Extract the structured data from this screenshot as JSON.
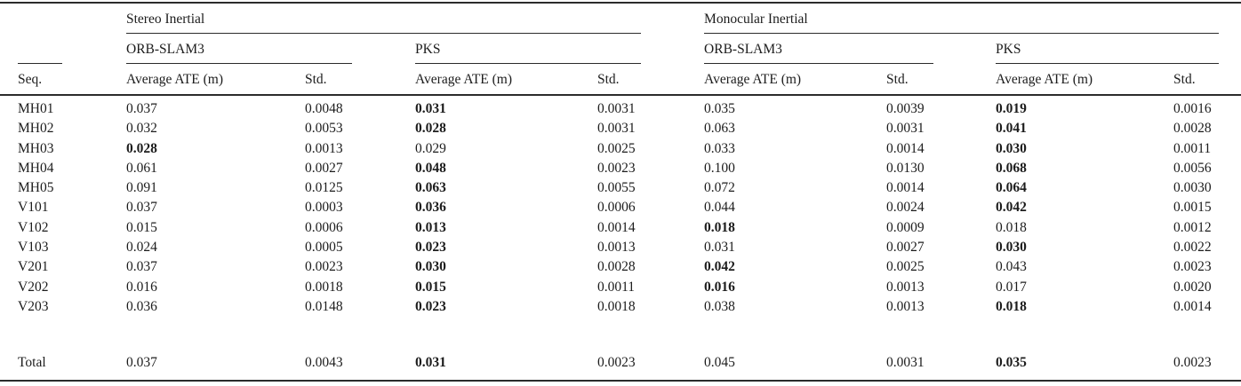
{
  "page": {
    "background": "#ffffff",
    "text_color": "#1c1c1c",
    "rule_color": "#2b2b2b"
  },
  "table": {
    "row_header": "Seq.",
    "groups": [
      {
        "label": "Stereo Inertial",
        "methods": [
          {
            "label": "ORB-SLAM3"
          },
          {
            "label": "PKS"
          }
        ]
      },
      {
        "label": "Monocular Inertial",
        "methods": [
          {
            "label": "ORB-SLAM3"
          },
          {
            "label": "PKS"
          }
        ]
      }
    ],
    "col_headers": {
      "avg": "Average ATE (m)",
      "std": "Std."
    },
    "rows": [
      {
        "seq": "MH01",
        "cells": [
          {
            "v": "0.037",
            "bold": false
          },
          {
            "v": "0.0048",
            "bold": false
          },
          {
            "v": "0.031",
            "bold": true
          },
          {
            "v": "0.0031",
            "bold": false
          },
          {
            "v": "0.035",
            "bold": false
          },
          {
            "v": "0.0039",
            "bold": false
          },
          {
            "v": "0.019",
            "bold": true
          },
          {
            "v": "0.0016",
            "bold": false
          }
        ]
      },
      {
        "seq": "MH02",
        "cells": [
          {
            "v": "0.032",
            "bold": false
          },
          {
            "v": "0.0053",
            "bold": false
          },
          {
            "v": "0.028",
            "bold": true
          },
          {
            "v": "0.0031",
            "bold": false
          },
          {
            "v": "0.063",
            "bold": false
          },
          {
            "v": "0.0031",
            "bold": false
          },
          {
            "v": "0.041",
            "bold": true
          },
          {
            "v": "0.0028",
            "bold": false
          }
        ]
      },
      {
        "seq": "MH03",
        "cells": [
          {
            "v": "0.028",
            "bold": true
          },
          {
            "v": "0.0013",
            "bold": false
          },
          {
            "v": "0.029",
            "bold": false
          },
          {
            "v": "0.0025",
            "bold": false
          },
          {
            "v": "0.033",
            "bold": false
          },
          {
            "v": "0.0014",
            "bold": false
          },
          {
            "v": "0.030",
            "bold": true
          },
          {
            "v": "0.0011",
            "bold": false
          }
        ]
      },
      {
        "seq": "MH04",
        "cells": [
          {
            "v": "0.061",
            "bold": false
          },
          {
            "v": "0.0027",
            "bold": false
          },
          {
            "v": "0.048",
            "bold": true
          },
          {
            "v": "0.0023",
            "bold": false
          },
          {
            "v": "0.100",
            "bold": false
          },
          {
            "v": "0.0130",
            "bold": false
          },
          {
            "v": "0.068",
            "bold": true
          },
          {
            "v": "0.0056",
            "bold": false
          }
        ]
      },
      {
        "seq": "MH05",
        "cells": [
          {
            "v": "0.091",
            "bold": false
          },
          {
            "v": "0.0125",
            "bold": false
          },
          {
            "v": "0.063",
            "bold": true
          },
          {
            "v": "0.0055",
            "bold": false
          },
          {
            "v": "0.072",
            "bold": false
          },
          {
            "v": "0.0014",
            "bold": false
          },
          {
            "v": "0.064",
            "bold": true
          },
          {
            "v": "0.0030",
            "bold": false
          }
        ]
      },
      {
        "seq": "V101",
        "cells": [
          {
            "v": "0.037",
            "bold": false
          },
          {
            "v": "0.0003",
            "bold": false
          },
          {
            "v": "0.036",
            "bold": true
          },
          {
            "v": "0.0006",
            "bold": false
          },
          {
            "v": "0.044",
            "bold": false
          },
          {
            "v": "0.0024",
            "bold": false
          },
          {
            "v": "0.042",
            "bold": true
          },
          {
            "v": "0.0015",
            "bold": false
          }
        ]
      },
      {
        "seq": "V102",
        "cells": [
          {
            "v": "0.015",
            "bold": false
          },
          {
            "v": "0.0006",
            "bold": false
          },
          {
            "v": "0.013",
            "bold": true
          },
          {
            "v": "0.0014",
            "bold": false
          },
          {
            "v": "0.018",
            "bold": true
          },
          {
            "v": "0.0009",
            "bold": false
          },
          {
            "v": "0.018",
            "bold": false
          },
          {
            "v": "0.0012",
            "bold": false
          }
        ]
      },
      {
        "seq": "V103",
        "cells": [
          {
            "v": "0.024",
            "bold": false
          },
          {
            "v": "0.0005",
            "bold": false
          },
          {
            "v": "0.023",
            "bold": true
          },
          {
            "v": "0.0013",
            "bold": false
          },
          {
            "v": "0.031",
            "bold": false
          },
          {
            "v": "0.0027",
            "bold": false
          },
          {
            "v": "0.030",
            "bold": true
          },
          {
            "v": "0.0022",
            "bold": false
          }
        ]
      },
      {
        "seq": "V201",
        "cells": [
          {
            "v": "0.037",
            "bold": false
          },
          {
            "v": "0.0023",
            "bold": false
          },
          {
            "v": "0.030",
            "bold": true
          },
          {
            "v": "0.0028",
            "bold": false
          },
          {
            "v": "0.042",
            "bold": true
          },
          {
            "v": "0.0025",
            "bold": false
          },
          {
            "v": "0.043",
            "bold": false
          },
          {
            "v": "0.0023",
            "bold": false
          }
        ]
      },
      {
        "seq": "V202",
        "cells": [
          {
            "v": "0.016",
            "bold": false
          },
          {
            "v": "0.0018",
            "bold": false
          },
          {
            "v": "0.015",
            "bold": true
          },
          {
            "v": "0.0011",
            "bold": false
          },
          {
            "v": "0.016",
            "bold": true
          },
          {
            "v": "0.0013",
            "bold": false
          },
          {
            "v": "0.017",
            "bold": false
          },
          {
            "v": "0.0020",
            "bold": false
          }
        ]
      },
      {
        "seq": "V203",
        "cells": [
          {
            "v": "0.036",
            "bold": false
          },
          {
            "v": "0.0148",
            "bold": false
          },
          {
            "v": "0.023",
            "bold": true
          },
          {
            "v": "0.0018",
            "bold": false
          },
          {
            "v": "0.038",
            "bold": false
          },
          {
            "v": "0.0013",
            "bold": false
          },
          {
            "v": "0.018",
            "bold": true
          },
          {
            "v": "0.0014",
            "bold": false
          }
        ]
      }
    ],
    "total": {
      "seq": "Total",
      "cells": [
        {
          "v": "0.037",
          "bold": false
        },
        {
          "v": "0.0043",
          "bold": false
        },
        {
          "v": "0.031",
          "bold": true
        },
        {
          "v": "0.0023",
          "bold": false
        },
        {
          "v": "0.045",
          "bold": false
        },
        {
          "v": "0.0031",
          "bold": false
        },
        {
          "v": "0.035",
          "bold": true
        },
        {
          "v": "0.0023",
          "bold": false
        }
      ]
    }
  }
}
